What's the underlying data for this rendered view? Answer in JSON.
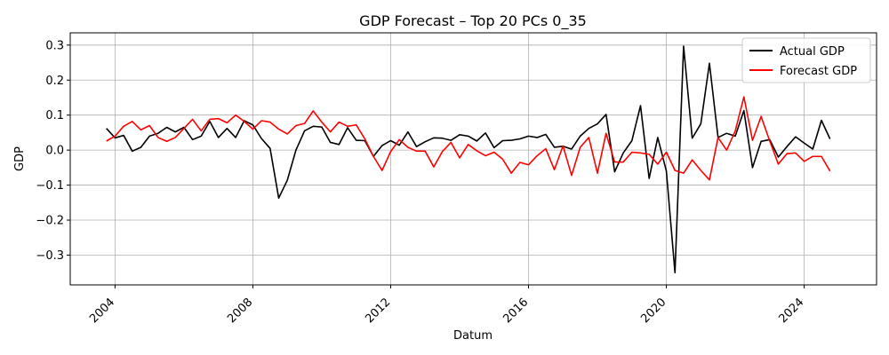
{
  "chart_data": {
    "type": "line",
    "title": "GDP Forecast – Top 20 PCs 0_35",
    "xlabel": "Datum",
    "ylabel": "GDP",
    "xlim": [
      2002.7,
      2026.1
    ],
    "ylim": [
      -0.385,
      0.335
    ],
    "x_ticks": [
      2004,
      2008,
      2012,
      2016,
      2020,
      2024
    ],
    "x_tick_labels": [
      "2004",
      "2008",
      "2012",
      "2016",
      "2020",
      "2024"
    ],
    "y_ticks": [
      -0.3,
      -0.2,
      -0.1,
      0.0,
      0.1,
      0.2,
      0.3
    ],
    "y_tick_labels": [
      "−0.3",
      "−0.2",
      "−0.1",
      "0.0",
      "0.1",
      "0.2",
      "0.3"
    ],
    "grid": true,
    "legend": "top-right",
    "x_start": 2003.75,
    "x_step": 0.25,
    "series": [
      {
        "name": "Actual GDP",
        "color": "#000000",
        "values": [
          0.062,
          0.035,
          0.042,
          -0.003,
          0.008,
          0.04,
          0.048,
          0.065,
          0.052,
          0.065,
          0.03,
          0.04,
          0.082,
          0.036,
          0.062,
          0.036,
          0.084,
          0.072,
          0.033,
          0.005,
          -0.137,
          -0.086,
          0.0,
          0.055,
          0.068,
          0.066,
          0.022,
          0.016,
          0.064,
          0.028,
          0.027,
          -0.018,
          0.013,
          0.027,
          0.014,
          0.052,
          0.01,
          0.024,
          0.035,
          0.034,
          0.028,
          0.044,
          0.04,
          0.026,
          0.049,
          0.007,
          0.027,
          0.028,
          0.032,
          0.04,
          0.036,
          0.045,
          0.008,
          0.011,
          0.003,
          0.04,
          0.062,
          0.075,
          0.102,
          -0.062,
          -0.008,
          0.027,
          0.127,
          -0.081,
          0.036,
          -0.06,
          -0.35,
          0.297,
          0.034,
          0.075,
          0.248,
          0.036,
          0.048,
          0.04,
          0.113,
          -0.05,
          0.025,
          0.03,
          -0.02,
          0.01,
          0.038,
          0.02,
          0.003,
          0.085,
          0.032
        ]
      },
      {
        "name": "Forecast GDP",
        "color": "#ff0000",
        "values": [
          0.026,
          0.04,
          0.068,
          0.082,
          0.058,
          0.07,
          0.036,
          0.025,
          0.036,
          0.062,
          0.088,
          0.055,
          0.088,
          0.09,
          0.078,
          0.1,
          0.082,
          0.06,
          0.084,
          0.08,
          0.06,
          0.046,
          0.07,
          0.076,
          0.112,
          0.08,
          0.052,
          0.08,
          0.068,
          0.072,
          0.032,
          -0.018,
          -0.058,
          -0.004,
          0.03,
          0.008,
          -0.003,
          -0.003,
          -0.048,
          -0.004,
          0.022,
          -0.022,
          0.016,
          -0.002,
          -0.016,
          -0.006,
          -0.026,
          -0.066,
          -0.035,
          -0.042,
          -0.016,
          0.004,
          -0.056,
          0.012,
          -0.072,
          0.008,
          0.036,
          -0.066,
          0.048,
          -0.034,
          -0.034,
          -0.006,
          -0.008,
          -0.012,
          -0.04,
          -0.006,
          -0.058,
          -0.066,
          -0.028,
          -0.058,
          -0.085,
          0.036,
          0.0,
          0.055,
          0.152,
          0.028,
          0.096,
          0.026,
          -0.04,
          -0.01,
          -0.008,
          -0.032,
          -0.018,
          -0.018,
          -0.06
        ]
      }
    ]
  }
}
